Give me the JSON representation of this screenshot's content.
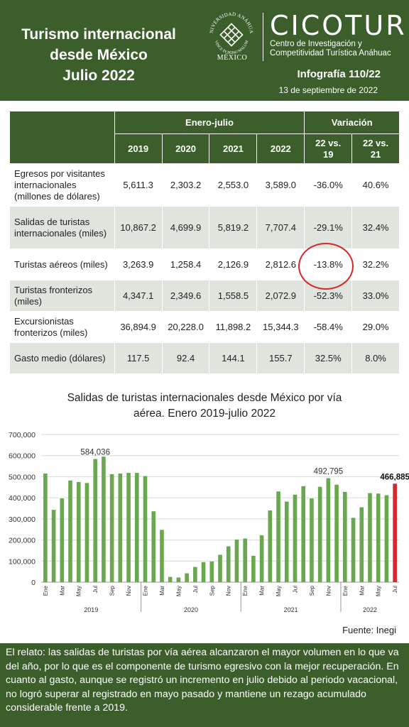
{
  "header": {
    "title_lines": [
      "Turismo internacional",
      "desde México",
      "Julio 2022"
    ],
    "seal_name": "UNIVERSIDAD ANÁHUAC",
    "seal_motto": "VINCE IN BONO MALUM",
    "seal_city": "MÉXICO",
    "brand": "CICOTUR",
    "brand_sub_1": "Centro de Investigación y",
    "brand_sub_2": "Competitividad Turística Anáhuac",
    "infografia": "Infografía 110/22",
    "date": "13 de septiembre de 2022",
    "bg_color": "#3b5e2b"
  },
  "table": {
    "group_headers": [
      "Enero-julio",
      "Variación"
    ],
    "columns": [
      "2019",
      "2020",
      "2021",
      "2022",
      "22 vs. 19",
      "22 vs. 21"
    ],
    "rows": [
      {
        "label": "Egresos por visitantes internacionales (millones de dólares)",
        "values": [
          "5,611.3",
          "2,303.2",
          "2,553.0",
          "3,589.0",
          "-36.0%",
          "40.6%"
        ]
      },
      {
        "label": "Salidas de turistas internacionales (miles)",
        "values": [
          "10,867.2",
          "4,699.9",
          "5,819.2",
          "7,707.4",
          "-29.1%",
          "32.4%"
        ]
      },
      {
        "label": "Turistas aéreos (miles)",
        "values": [
          "3,263.9",
          "1,258.4",
          "2,126.9",
          "2,812.6",
          "-13.8%",
          "32.2%"
        ]
      },
      {
        "label": "Turistas fronterizos (miles)",
        "values": [
          "4,347.1",
          "2,349.6",
          "1,558.5",
          "2,072.9",
          "-52.3%",
          "33.0%"
        ]
      },
      {
        "label": "Excursionistas fronterizos (miles)",
        "values": [
          "36,894.9",
          "20,228.0",
          "11,898.2",
          "15,344.3",
          "-58.4%",
          "29.0%"
        ]
      },
      {
        "label": "Gasto medio (dólares)",
        "values": [
          "117.5",
          "92.4",
          "144.1",
          "155.7",
          "32.5%",
          "8.0%"
        ]
      }
    ],
    "highlight_color": "#d42a2a"
  },
  "chart_data": {
    "type": "bar",
    "title": "Salidas de turistas internacionales desde México por vía aérea. Enero 2019-julio 2022",
    "title_lines": [
      "Salidas de turistas internacionales desde México por vía",
      "aérea. Enero 2019-julio 2022"
    ],
    "ylim": [
      0,
      700000
    ],
    "yticks": [
      "0",
      "100,000",
      "200,000",
      "300,000",
      "400,000",
      "500,000",
      "600,000",
      "700,000"
    ],
    "grid": true,
    "bar_color": "#6aa84f",
    "highlight_color": "#d42a2a",
    "month_labels": [
      "Ene",
      "",
      "Mar",
      "",
      "May",
      "",
      "Jul",
      "",
      "Sep",
      "",
      "Nov",
      "",
      "Ene",
      "",
      "Mar",
      "",
      "May",
      "",
      "Jul",
      "",
      "Sep",
      "",
      "Nov",
      "",
      "Ene",
      "",
      "Mar",
      "",
      "May",
      "",
      "Jul",
      "",
      "Sep",
      "",
      "Nov",
      "",
      "Ene",
      "",
      "Mar",
      "",
      "May",
      "",
      "Jul"
    ],
    "years": [
      {
        "label": "2019",
        "months": 12
      },
      {
        "label": "2020",
        "months": 12
      },
      {
        "label": "2021",
        "months": 12
      },
      {
        "label": "2022",
        "months": 7
      }
    ],
    "values": [
      515000,
      343000,
      397000,
      482000,
      475000,
      470000,
      584036,
      595000,
      512000,
      515000,
      518000,
      518000,
      503000,
      336000,
      248000,
      25000,
      22000,
      42000,
      72000,
      95000,
      98000,
      130000,
      170000,
      202000,
      207000,
      125000,
      222000,
      340000,
      430000,
      382000,
      415000,
      455000,
      397000,
      452000,
      492795,
      462000,
      428000,
      305000,
      355000,
      422000,
      420000,
      412000,
      466885
    ],
    "annotations": [
      {
        "index": 6,
        "label": "584,036"
      },
      {
        "index": 34,
        "label": "492,795"
      },
      {
        "index": 42,
        "label": "466,885"
      }
    ],
    "source": "Fuente: Inegi"
  },
  "footer": {
    "text": "El relato: las salidas de turistas por vía aérea alcanzaron el mayor volumen en lo que va del año, por lo que es el componente de turismo egresivo con la mejor recuperación. En cuanto al gasto, aunque se registró un incremento en julio debido al periodo vacacional, no logró superar al registrado en mayo pasado y mantiene un rezago acumulado considerable frente a 2019."
  }
}
